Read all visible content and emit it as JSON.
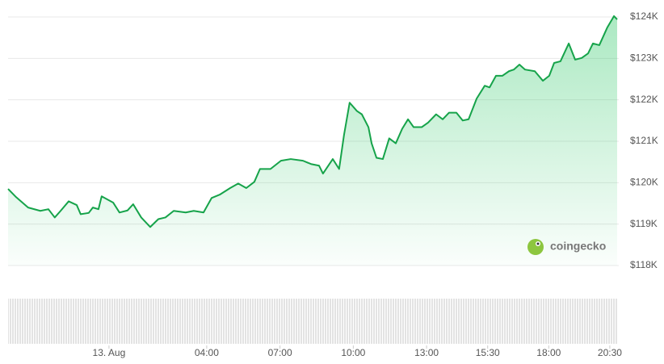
{
  "chart_data": {
    "type": "line",
    "watermark": "coingecko",
    "xlim": [
      -4.13,
      20.8
    ],
    "xticks": [
      {
        "value": 0,
        "label": "13. Aug"
      },
      {
        "value": 4,
        "label": "04:00"
      },
      {
        "value": 7,
        "label": "07:00"
      },
      {
        "value": 10,
        "label": "10:00"
      },
      {
        "value": 13,
        "label": "13:00"
      },
      {
        "value": 15.5,
        "label": "15:30"
      },
      {
        "value": 18,
        "label": "18:00"
      },
      {
        "value": 20.5,
        "label": "20:30"
      }
    ],
    "ylim": [
      118,
      124
    ],
    "yticks": [
      {
        "value": 118,
        "label": "$118K"
      },
      {
        "value": 119,
        "label": "$119K"
      },
      {
        "value": 120,
        "label": "$120K"
      },
      {
        "value": 121,
        "label": "$121K"
      },
      {
        "value": 122,
        "label": "$122K"
      },
      {
        "value": 123,
        "label": "$123K"
      },
      {
        "value": 124,
        "label": "$124K"
      }
    ],
    "grid": true,
    "x": [
      -4.13,
      -3.8,
      -3.31,
      -2.81,
      -2.48,
      -2.22,
      -1.98,
      -1.65,
      -1.32,
      -1.16,
      -0.83,
      -0.66,
      -0.43,
      -0.3,
      0.17,
      0.43,
      0.76,
      0.99,
      1.32,
      1.69,
      2.02,
      2.31,
      2.65,
      3.14,
      3.47,
      3.87,
      4.2,
      4.53,
      4.96,
      5.29,
      5.62,
      5.95,
      6.18,
      6.61,
      7.04,
      7.44,
      7.94,
      8.27,
      8.6,
      8.76,
      9.16,
      9.42,
      9.62,
      9.85,
      10.15,
      10.35,
      10.62,
      10.75,
      10.95,
      11.21,
      11.47,
      11.74,
      12.0,
      12.24,
      12.47,
      12.8,
      13.06,
      13.39,
      13.66,
      13.92,
      14.22,
      14.48,
      14.72,
      15.05,
      15.38,
      15.58,
      15.84,
      16.1,
      16.37,
      16.57,
      16.8,
      17.03,
      17.43,
      17.76,
      18.02,
      18.22,
      18.48,
      18.82,
      19.08,
      19.35,
      19.61,
      19.81,
      20.07,
      20.4,
      20.67,
      20.8
    ],
    "series": [
      {
        "color": "#16a34a",
        "values": [
          119.85,
          119.65,
          119.4,
          119.32,
          119.36,
          119.16,
          119.32,
          119.55,
          119.46,
          119.24,
          119.27,
          119.4,
          119.36,
          119.67,
          119.52,
          119.28,
          119.33,
          119.48,
          119.16,
          118.93,
          119.12,
          119.16,
          119.32,
          119.28,
          119.32,
          119.28,
          119.63,
          119.71,
          119.87,
          119.98,
          119.87,
          120.02,
          120.33,
          120.33,
          120.53,
          120.57,
          120.53,
          120.45,
          120.41,
          120.22,
          120.57,
          120.33,
          121.15,
          121.93,
          121.73,
          121.65,
          121.34,
          120.95,
          120.6,
          120.57,
          121.07,
          120.95,
          121.3,
          121.53,
          121.34,
          121.34,
          121.45,
          121.65,
          121.53,
          121.69,
          121.69,
          121.5,
          121.53,
          122.03,
          122.34,
          122.3,
          122.58,
          122.58,
          122.69,
          122.73,
          122.85,
          122.73,
          122.69,
          122.46,
          122.58,
          122.89,
          122.93,
          123.36,
          122.97,
          123.01,
          123.12,
          123.36,
          123.32,
          123.75,
          124.02,
          123.94
        ]
      }
    ]
  }
}
